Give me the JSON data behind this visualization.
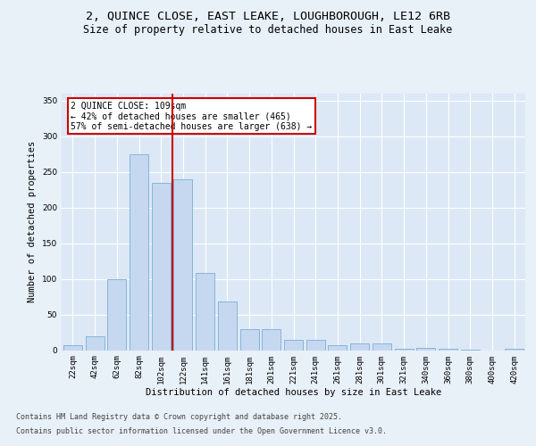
{
  "title_line1": "2, QUINCE CLOSE, EAST LEAKE, LOUGHBOROUGH, LE12 6RB",
  "title_line2": "Size of property relative to detached houses in East Leake",
  "xlabel": "Distribution of detached houses by size in East Leake",
  "ylabel": "Number of detached properties",
  "categories": [
    "22sqm",
    "42sqm",
    "62sqm",
    "82sqm",
    "102sqm",
    "122sqm",
    "141sqm",
    "161sqm",
    "181sqm",
    "201sqm",
    "221sqm",
    "241sqm",
    "261sqm",
    "281sqm",
    "301sqm",
    "321sqm",
    "340sqm",
    "360sqm",
    "380sqm",
    "400sqm",
    "420sqm"
  ],
  "values": [
    7,
    19,
    100,
    275,
    235,
    240,
    108,
    68,
    30,
    30,
    15,
    15,
    7,
    10,
    10,
    2,
    3,
    2,
    1,
    0,
    2
  ],
  "bar_color": "#c5d8f0",
  "bar_edge_color": "#7aafd4",
  "property_label": "2 QUINCE CLOSE: 109sqm",
  "annotation_line1": "← 42% of detached houses are smaller (465)",
  "annotation_line2": "57% of semi-detached houses are larger (638) →",
  "vline_color": "#cc0000",
  "vline_position": 4.5,
  "annotation_box_color": "#cc0000",
  "ylim": [
    0,
    360
  ],
  "yticks": [
    0,
    50,
    100,
    150,
    200,
    250,
    300,
    350
  ],
  "background_color": "#e8f0f8",
  "plot_bg_color": "#dce8f5",
  "footer_line1": "Contains HM Land Registry data © Crown copyright and database right 2025.",
  "footer_line2": "Contains public sector information licensed under the Open Government Licence v3.0.",
  "title_fontsize": 9.5,
  "subtitle_fontsize": 8.5,
  "axis_label_fontsize": 7.5,
  "tick_fontsize": 6.5,
  "footer_fontsize": 6.0,
  "annotation_fontsize": 7.0
}
